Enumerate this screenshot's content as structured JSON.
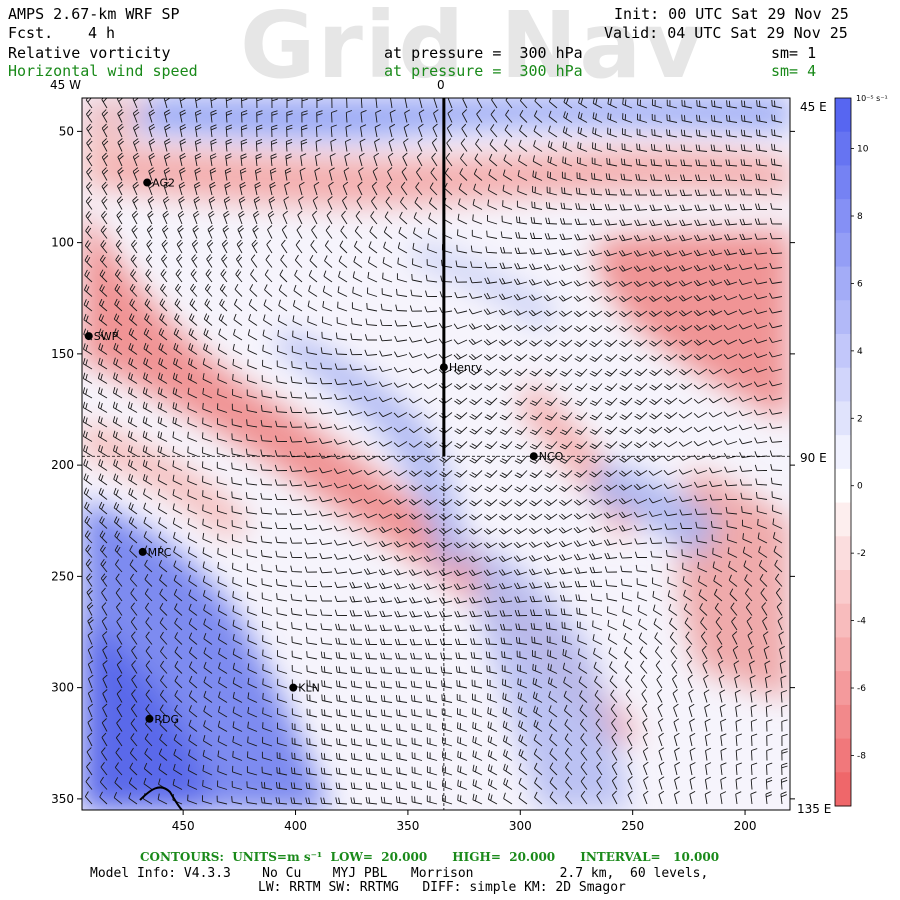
{
  "watermark": "Grid Nav",
  "header": {
    "model": "AMPS 2.67-km WRF SP",
    "forecast_label": "Fcst.",
    "forecast_value": "4 h",
    "init": "Init: 00 UTC Sat 29 Nov 25",
    "valid": "Valid: 04 UTC Sat 29 Nov 25",
    "field1": "Relative vorticity",
    "field1_level": "at pressure =  300 hPa",
    "field1_sm": "sm= 1",
    "field2": "Horizontal wind speed",
    "field2_level": "at pressure =  300 hPa",
    "field2_sm": "sm= 4"
  },
  "map": {
    "top_left_label": "45 W",
    "top_center_label": "0",
    "right_labels": [
      "45 E",
      "90 E",
      "135 E"
    ],
    "y_ticks": [
      50,
      100,
      150,
      200,
      250,
      300,
      350
    ],
    "x_ticks": [
      450,
      400,
      350,
      300,
      250,
      200
    ],
    "xlim": [
      495,
      180
    ],
    "ylim": [
      355,
      35
    ],
    "stations": [
      {
        "name": "AG2",
        "x": 466,
        "y": 73
      },
      {
        "name": "SWP",
        "x": 492,
        "y": 142
      },
      {
        "name": "Henry",
        "x": 334,
        "y": 156
      },
      {
        "name": "NCO",
        "x": 294,
        "y": 196
      },
      {
        "name": "MPC",
        "x": 468,
        "y": 239
      },
      {
        "name": "KLN",
        "x": 401,
        "y": 300
      },
      {
        "name": "RDG",
        "x": 465,
        "y": 314
      }
    ],
    "meridian_x": 334,
    "parallel_y": 196
  },
  "colorbar": {
    "unit_label": "10⁻⁵ s⁻¹",
    "ticks": [
      10,
      8,
      6,
      4,
      2,
      0,
      -2,
      -4,
      -6,
      -8
    ],
    "range": [
      -9.5,
      11.5
    ],
    "positive_color": "#4f5ff0",
    "negative_color": "#ee5f62"
  },
  "footer": {
    "contours": "CONTOURS:  UNITS=m s⁻¹  LOW=  20.000      HIGH=  20.000      INTERVAL=   10.000",
    "model_info": "Model Info: V4.3.3    No Cu    MYJ PBL   Morrison           2.7 km,  60 levels,",
    "physics": "LW: RRTM SW: RRTMG   DIFF: simple KM: 2D Smagor"
  }
}
